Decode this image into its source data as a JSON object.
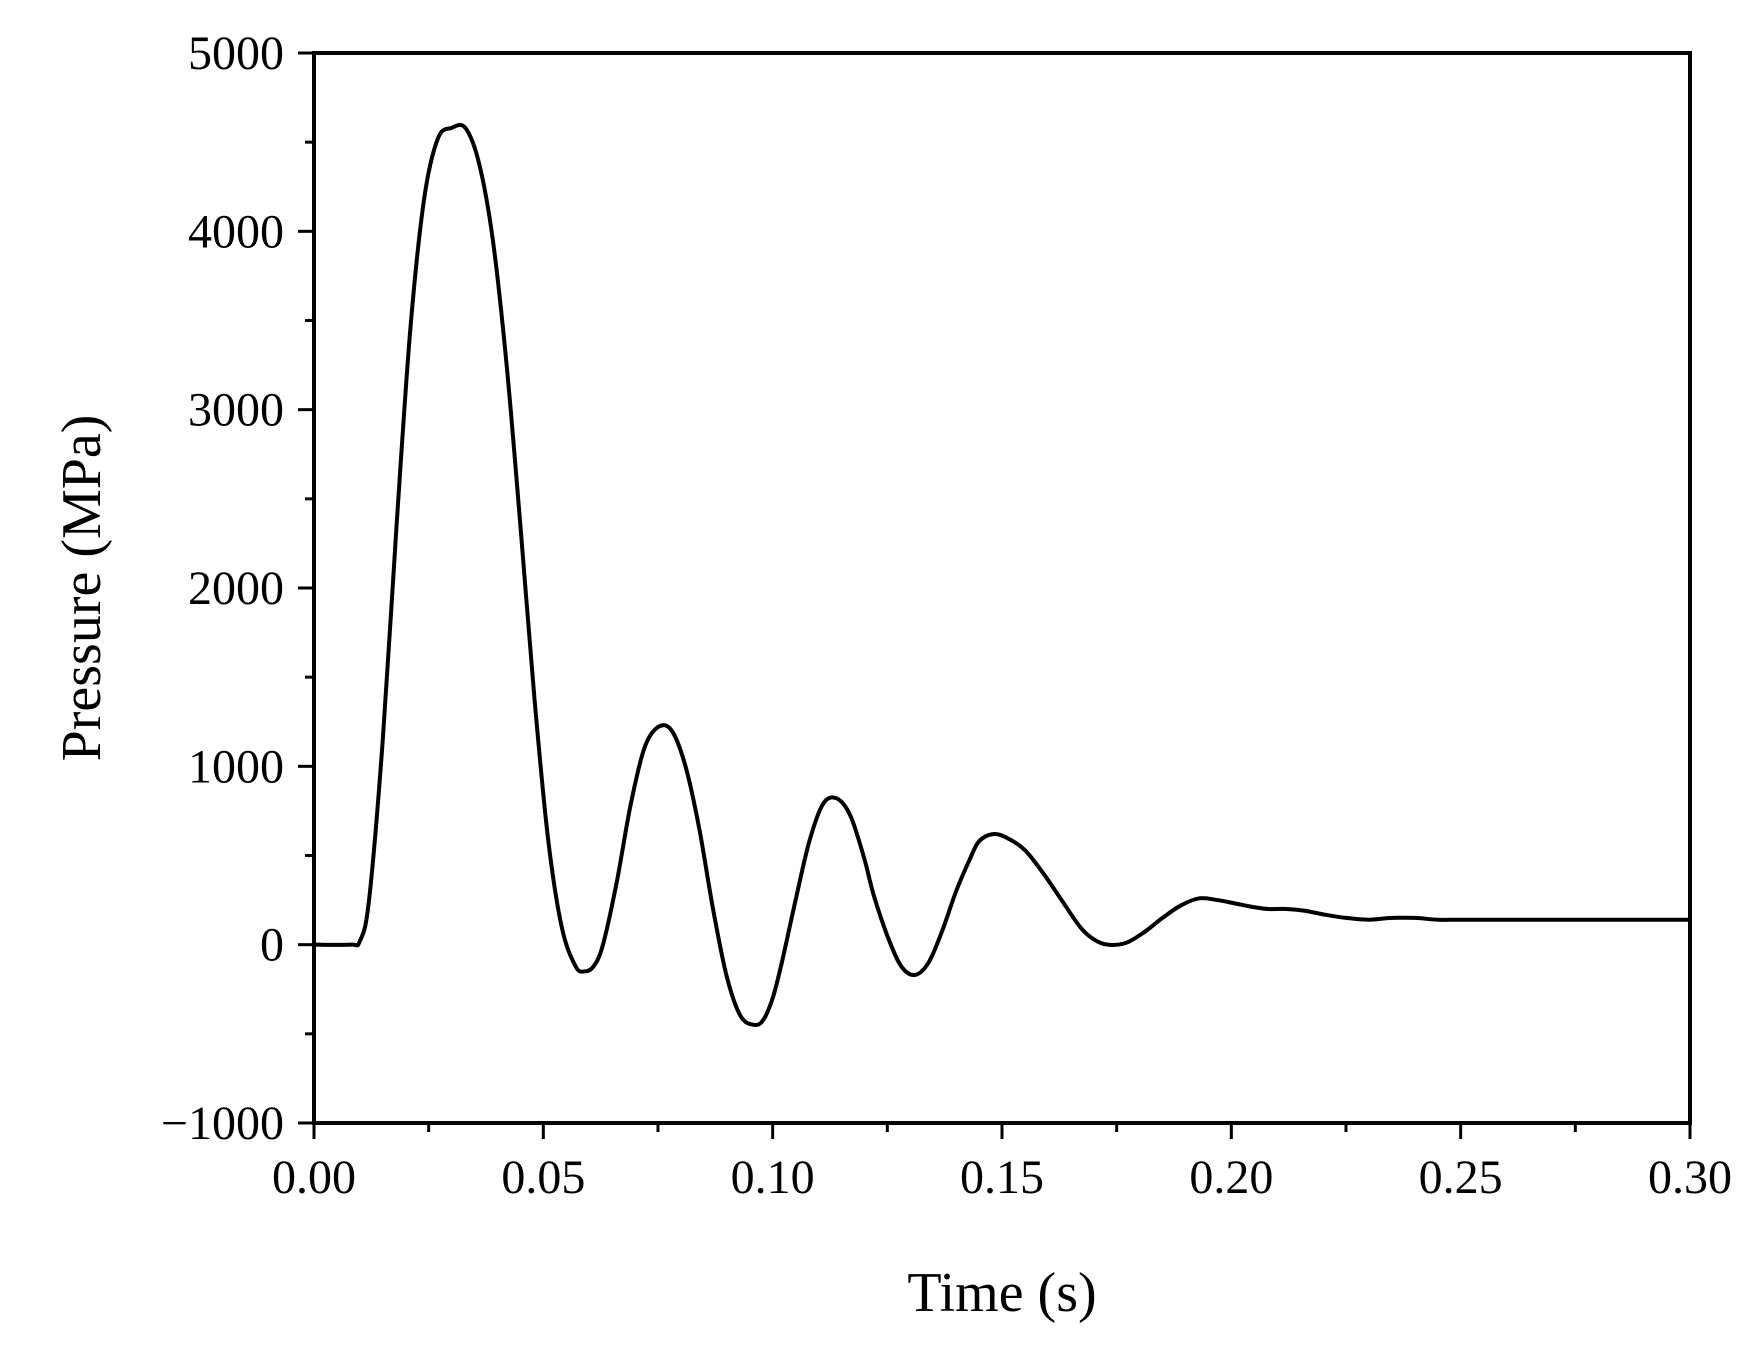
{
  "chart_data": {
    "type": "line",
    "title": "",
    "xlabel": "Time (s)",
    "ylabel": "Pressure (MPa)",
    "xlim": [
      0.0,
      0.3
    ],
    "ylim": [
      -1000,
      5000
    ],
    "x_ticks": [
      0.0,
      0.05,
      0.1,
      0.15,
      0.2,
      0.25,
      0.3
    ],
    "x_tick_labels": [
      "0.00",
      "0.05",
      "0.10",
      "0.15",
      "0.20",
      "0.25",
      "0.30"
    ],
    "y_ticks": [
      -1000,
      0,
      1000,
      2000,
      3000,
      4000,
      5000
    ],
    "y_tick_labels": [
      "−1000",
      "0",
      "1000",
      "2000",
      "3000",
      "4000",
      "5000"
    ],
    "grid": false,
    "legend": "none",
    "line_color": "#000000",
    "series": [
      {
        "x": [
          0.0,
          0.008,
          0.01,
          0.012,
          0.015,
          0.018,
          0.021,
          0.024,
          0.027,
          0.03,
          0.033,
          0.036,
          0.039,
          0.042,
          0.045,
          0.048,
          0.051,
          0.054,
          0.057,
          0.059,
          0.061,
          0.063,
          0.066,
          0.069,
          0.072,
          0.075,
          0.078,
          0.081,
          0.084,
          0.087,
          0.09,
          0.093,
          0.096,
          0.098,
          0.1,
          0.102,
          0.105,
          0.108,
          0.111,
          0.114,
          0.117,
          0.12,
          0.122,
          0.125,
          0.128,
          0.131,
          0.134,
          0.137,
          0.14,
          0.143,
          0.145,
          0.148,
          0.151,
          0.155,
          0.159,
          0.163,
          0.167,
          0.17,
          0.173,
          0.177,
          0.181,
          0.185,
          0.189,
          0.193,
          0.197,
          0.201,
          0.205,
          0.208,
          0.212,
          0.216,
          0.22,
          0.225,
          0.23,
          0.235,
          0.24,
          0.245,
          0.25,
          0.26,
          0.27,
          0.28,
          0.29,
          0.3
        ],
        "y": [
          0,
          0,
          20,
          250,
          1150,
          2350,
          3450,
          4180,
          4520,
          4580,
          4580,
          4380,
          3950,
          3250,
          2350,
          1400,
          600,
          100,
          -120,
          -150,
          -120,
          0,
          350,
          780,
          1100,
          1220,
          1200,
          1000,
          650,
          200,
          -180,
          -400,
          -450,
          -420,
          -300,
          -100,
          250,
          580,
          790,
          820,
          720,
          480,
          280,
          50,
          -120,
          -170,
          -100,
          80,
          300,
          480,
          580,
          620,
          600,
          530,
          400,
          250,
          100,
          30,
          0,
          10,
          70,
          150,
          220,
          260,
          250,
          230,
          210,
          200,
          200,
          190,
          170,
          150,
          140,
          150,
          150,
          140,
          140,
          140,
          140,
          140,
          140,
          140
        ]
      }
    ]
  }
}
